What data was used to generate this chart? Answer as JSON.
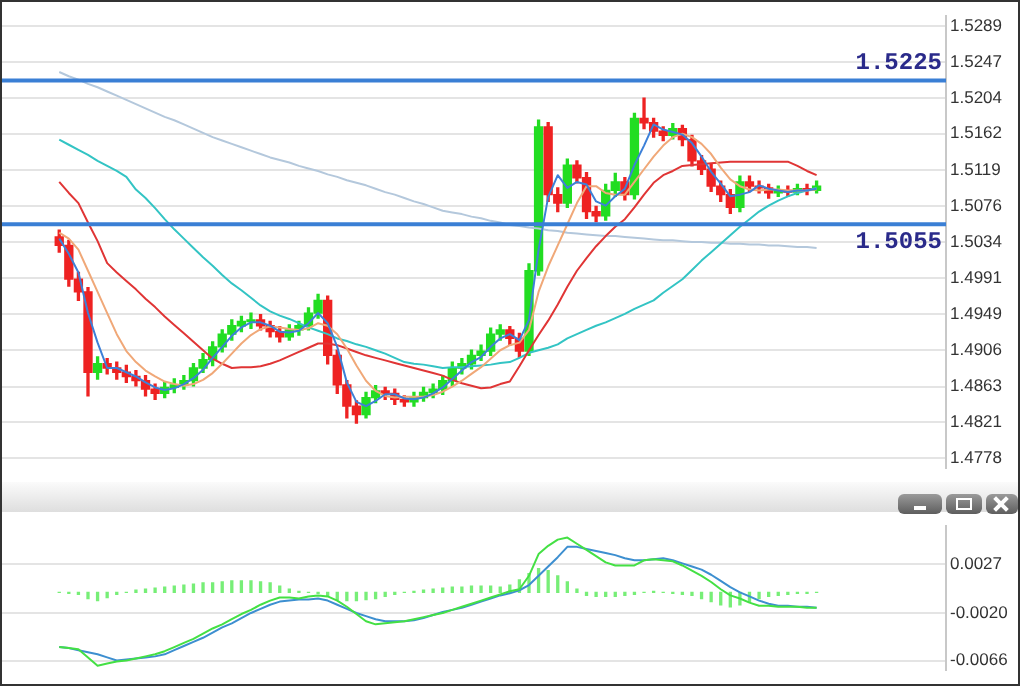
{
  "chart_data": [
    {
      "type": "candlestick",
      "categories": [
        null,
        null,
        null,
        null,
        null,
        null,
        null,
        null,
        null,
        null,
        null,
        null,
        null,
        null,
        null,
        null,
        null,
        null,
        null,
        null,
        null,
        null,
        null,
        null,
        null,
        null,
        null,
        null,
        null,
        null,
        null,
        null,
        null,
        null,
        null,
        null,
        null,
        null,
        null,
        null,
        null,
        null,
        null,
        null,
        null,
        null,
        null,
        null,
        null,
        null,
        null,
        null,
        null,
        null,
        null,
        null,
        null,
        null,
        null,
        null,
        null,
        null,
        null,
        null,
        null,
        null,
        null,
        null,
        null,
        null,
        null,
        null,
        null,
        null,
        null,
        null,
        null,
        null,
        null,
        null
      ],
      "ohlc": [
        [
          1.504,
          1.5048,
          1.5022,
          1.503
        ],
        [
          1.503,
          1.5036,
          1.4982,
          1.499
        ],
        [
          1.499,
          1.4998,
          1.4965,
          1.4975
        ],
        [
          1.4975,
          1.498,
          1.4852,
          1.488
        ],
        [
          1.488,
          1.4898,
          1.4872,
          1.489
        ],
        [
          1.489,
          1.4896,
          1.4878,
          1.4885
        ],
        [
          1.4885,
          1.4892,
          1.4872,
          1.488
        ],
        [
          1.488,
          1.4888,
          1.4868,
          1.4875
        ],
        [
          1.4875,
          1.4882,
          1.4864,
          1.487
        ],
        [
          1.487,
          1.4876,
          1.4852,
          1.486
        ],
        [
          1.486,
          1.4866,
          1.4848,
          1.4855
        ],
        [
          1.4855,
          1.4868,
          1.485,
          1.4862
        ],
        [
          1.4862,
          1.4872,
          1.4856,
          1.4865
        ],
        [
          1.4865,
          1.4876,
          1.486,
          1.487
        ],
        [
          1.487,
          1.489,
          1.4864,
          1.4885
        ],
        [
          1.4885,
          1.4902,
          1.488,
          1.4895
        ],
        [
          1.4895,
          1.4916,
          1.4888,
          1.491
        ],
        [
          1.491,
          1.493,
          1.4904,
          1.4925
        ],
        [
          1.4925,
          1.4942,
          1.4918,
          1.4935
        ],
        [
          1.4935,
          1.4946,
          1.4928,
          1.494
        ],
        [
          1.494,
          1.495,
          1.4932,
          1.4942
        ],
        [
          1.4942,
          1.4948,
          1.493,
          1.4935
        ],
        [
          1.4935,
          1.494,
          1.4922,
          1.4928
        ],
        [
          1.4928,
          1.4934,
          1.4916,
          1.4922
        ],
        [
          1.4922,
          1.4936,
          1.4918,
          1.493
        ],
        [
          1.493,
          1.494,
          1.4924,
          1.4935
        ],
        [
          1.4935,
          1.4956,
          1.493,
          1.495
        ],
        [
          1.495,
          1.4972,
          1.4944,
          1.4965
        ],
        [
          1.4965,
          1.497,
          1.489,
          1.49
        ],
        [
          1.49,
          1.4906,
          1.4855,
          1.4865
        ],
        [
          1.4865,
          1.487,
          1.4826,
          1.484
        ],
        [
          1.484,
          1.4846,
          1.482,
          1.483
        ],
        [
          1.483,
          1.4856,
          1.4826,
          1.485
        ],
        [
          1.485,
          1.4864,
          1.4844,
          1.4858
        ],
        [
          1.4858,
          1.4862,
          1.4848,
          1.4855
        ],
        [
          1.4855,
          1.486,
          1.4842,
          1.4848
        ],
        [
          1.4848,
          1.4852,
          1.484,
          1.4845
        ],
        [
          1.4845,
          1.4856,
          1.484,
          1.485
        ],
        [
          1.485,
          1.4862,
          1.4846,
          1.4856
        ],
        [
          1.4856,
          1.4866,
          1.485,
          1.486
        ],
        [
          1.486,
          1.4876,
          1.4854,
          1.487
        ],
        [
          1.487,
          1.4892,
          1.4864,
          1.4885
        ],
        [
          1.4885,
          1.4896,
          1.4878,
          1.489
        ],
        [
          1.489,
          1.4906,
          1.4884,
          1.49
        ],
        [
          1.49,
          1.4912,
          1.4894,
          1.4905
        ],
        [
          1.4905,
          1.4932,
          1.49,
          1.4925
        ],
        [
          1.4925,
          1.4936,
          1.4918,
          1.493
        ],
        [
          1.493,
          1.4934,
          1.4912,
          1.492
        ],
        [
          1.492,
          1.4926,
          1.4898,
          1.4905
        ],
        [
          1.4905,
          1.5008,
          1.49,
          1.5
        ],
        [
          1.5,
          1.5178,
          1.4995,
          1.517
        ],
        [
          1.517,
          1.5175,
          1.5082,
          1.509
        ],
        [
          1.509,
          1.5098,
          1.507,
          1.508
        ],
        [
          1.508,
          1.5132,
          1.5075,
          1.5125
        ],
        [
          1.5125,
          1.513,
          1.5104,
          1.511
        ],
        [
          1.511,
          1.5116,
          1.5062,
          1.507
        ],
        [
          1.507,
          1.5076,
          1.5058,
          1.5065
        ],
        [
          1.5065,
          1.5102,
          1.506,
          1.5095
        ],
        [
          1.5095,
          1.5115,
          1.5088,
          1.5105
        ],
        [
          1.5105,
          1.511,
          1.5084,
          1.509
        ],
        [
          1.509,
          1.5186,
          1.5085,
          1.518
        ],
        [
          1.518,
          1.5204,
          1.5168,
          1.5175
        ],
        [
          1.5175,
          1.518,
          1.5158,
          1.5165
        ],
        [
          1.5165,
          1.517,
          1.5154,
          1.516
        ],
        [
          1.516,
          1.5174,
          1.5156,
          1.5168
        ],
        [
          1.5168,
          1.5172,
          1.5148,
          1.5155
        ],
        [
          1.5155,
          1.516,
          1.5124,
          1.513
        ],
        [
          1.513,
          1.5136,
          1.5114,
          1.512
        ],
        [
          1.512,
          1.5126,
          1.5094,
          1.51
        ],
        [
          1.51,
          1.5106,
          1.5082,
          1.509
        ],
        [
          1.509,
          1.5096,
          1.5068,
          1.5075
        ],
        [
          1.5075,
          1.5112,
          1.507,
          1.5105
        ],
        [
          1.5105,
          1.5112,
          1.5094,
          1.51
        ],
        [
          1.51,
          1.5106,
          1.5092,
          1.5098
        ],
        [
          1.5098,
          1.5102,
          1.5086,
          1.5092
        ],
        [
          1.5092,
          1.51,
          1.5088,
          1.5095
        ],
        [
          1.5095,
          1.51,
          1.5088,
          1.5093
        ],
        [
          1.5093,
          1.5102,
          1.509,
          1.5097
        ],
        [
          1.5097,
          1.5102,
          1.509,
          1.5095
        ],
        [
          1.5095,
          1.5106,
          1.5092,
          1.51
        ]
      ],
      "series": [
        {
          "type": "line",
          "color": "#b4c8dc",
          "values": [
            1.5235,
            1.523,
            1.5226,
            1.5221,
            1.5217,
            1.5212,
            1.5207,
            1.5202,
            1.5197,
            1.5192,
            1.5187,
            1.5182,
            1.5178,
            1.5173,
            1.5168,
            1.5163,
            1.5158,
            1.5154,
            1.515,
            1.5146,
            1.5142,
            1.5138,
            1.5134,
            1.5131,
            1.5128,
            1.5124,
            1.5121,
            1.5118,
            1.5114,
            1.5111,
            1.5107,
            1.5104,
            1.5101,
            1.5097,
            1.5093,
            1.509,
            1.5086,
            1.5082,
            1.5079,
            1.5075,
            1.5071,
            1.5069,
            1.5067,
            1.5064,
            1.5062,
            1.5059,
            1.5057,
            1.5054,
            1.5053,
            1.5051,
            1.505,
            1.5048,
            1.5047,
            1.5045,
            1.5044,
            1.5043,
            1.5042,
            1.5041,
            1.5041,
            1.504,
            1.5039,
            1.5038,
            1.5037,
            1.5036,
            1.5036,
            1.5035,
            1.5034,
            1.5034,
            1.5033,
            1.5033,
            1.5032,
            1.5032,
            1.5031,
            1.5031,
            1.503,
            1.503,
            1.5029,
            1.5028,
            1.5028,
            1.5027
          ]
        },
        {
          "type": "line",
          "color": "#33c4c4",
          "values": [
            1.5155,
            1.5149,
            1.5143,
            1.5137,
            1.513,
            1.5124,
            1.5118,
            1.5111,
            1.5096,
            1.5086,
            1.5074,
            1.5061,
            1.5049,
            1.5038,
            1.5027,
            1.5016,
            1.5006,
            1.4995,
            1.4985,
            1.4977,
            1.4968,
            1.4959,
            1.4952,
            1.4947,
            1.4943,
            1.4938,
            1.4933,
            1.4929,
            1.4925,
            1.492,
            1.4917,
            1.4913,
            1.491,
            1.4906,
            1.4902,
            1.4897,
            1.4892,
            1.489,
            1.4889,
            1.4887,
            1.4885,
            1.4886,
            1.4886,
            1.4887,
            1.4888,
            1.4889,
            1.4891,
            1.4892,
            1.4897,
            1.4903,
            1.4906,
            1.4909,
            1.4913,
            1.492,
            1.4925,
            1.493,
            1.4935,
            1.4939,
            1.4944,
            1.4949,
            1.4955,
            1.496,
            1.4965,
            1.4974,
            1.4982,
            1.499,
            1.5001,
            1.5012,
            1.5022,
            1.5032,
            1.5042,
            1.5052,
            1.5061,
            1.507,
            1.5077,
            1.5083,
            1.5088,
            1.5092,
            1.5095,
            1.5098
          ]
        },
        {
          "type": "line",
          "color": "#e03535",
          "values": [
            1.5105,
            1.5092,
            1.508,
            1.5057,
            1.5035,
            1.5009,
            1.4998,
            1.4988,
            1.4978,
            1.4967,
            1.4957,
            1.4946,
            1.4936,
            1.4926,
            1.4916,
            1.4906,
            1.4896,
            1.489,
            1.4885,
            1.4886,
            1.4886,
            1.4887,
            1.489,
            1.4894,
            1.4899,
            1.4904,
            1.4909,
            1.4914,
            1.4914,
            1.4912,
            1.4908,
            1.4904,
            1.49,
            1.4897,
            1.4894,
            1.4891,
            1.4888,
            1.4885,
            1.4882,
            1.4879,
            1.4876,
            1.4871,
            1.4867,
            1.4864,
            1.4861,
            1.4862,
            1.4866,
            1.4869,
            1.4887,
            1.4906,
            1.4924,
            1.4941,
            1.496,
            1.4981,
            1.5,
            1.5015,
            1.5029,
            1.5041,
            1.5052,
            1.5061,
            1.5075,
            1.509,
            1.5104,
            1.5113,
            1.5118,
            1.5124,
            1.5125,
            1.5126,
            1.5127,
            1.5128,
            1.5129,
            1.5129,
            1.5129,
            1.5129,
            1.5129,
            1.5129,
            1.5129,
            1.5124,
            1.5118,
            1.5113
          ]
        },
        {
          "type": "line",
          "color": "#f0a878",
          "values": [
            1.5045,
            1.5038,
            1.5025,
            1.5,
            1.4975,
            1.495,
            1.4925,
            1.4905,
            1.4892,
            1.4882,
            1.4875,
            1.4869,
            1.4866,
            1.4864,
            1.4866,
            1.4871,
            1.4879,
            1.489,
            1.4902,
            1.4914,
            1.4924,
            1.4931,
            1.4934,
            1.4933,
            1.4931,
            1.493,
            1.4932,
            1.4938,
            1.4935,
            1.4925,
            1.4908,
            1.4888,
            1.487,
            1.4858,
            1.4852,
            1.485,
            1.4851,
            1.4851,
            1.4851,
            1.4853,
            1.4857,
            1.4863,
            1.487,
            1.4878,
            1.4886,
            1.4896,
            1.4906,
            1.4912,
            1.4915,
            1.493,
            1.4975,
            1.5005,
            1.503,
            1.5055,
            1.508,
            1.51,
            1.51,
            1.5092,
            1.509,
            1.509,
            1.5105,
            1.512,
            1.5135,
            1.5148,
            1.5158,
            1.5162,
            1.5158,
            1.515,
            1.5138,
            1.5122,
            1.5108,
            1.51,
            1.5096,
            1.5095,
            1.5096,
            1.5096,
            1.5095,
            1.5095,
            1.5095,
            1.5096
          ]
        },
        {
          "type": "line",
          "color": "#3d80d8",
          "values": [
            1.5038,
            1.502,
            1.4998,
            1.495,
            1.4915,
            1.4885,
            1.4885,
            1.488,
            1.4875,
            1.4868,
            1.4862,
            1.4859,
            1.4861,
            1.4866,
            1.4873,
            1.4883,
            1.4897,
            1.491,
            1.4923,
            1.4933,
            1.4939,
            1.4939,
            1.4935,
            1.4928,
            1.4927,
            1.4929,
            1.4938,
            1.495,
            1.4938,
            1.491,
            1.4868,
            1.4845,
            1.484,
            1.4846,
            1.4854,
            1.4854,
            1.4849,
            1.4848,
            1.485,
            1.4855,
            1.4862,
            1.4872,
            1.4882,
            1.4892,
            1.4898,
            1.491,
            1.492,
            1.4925,
            1.4918,
            1.4942,
            1.5025,
            1.5087,
            1.5113,
            1.5098,
            1.5105,
            1.5102,
            1.5082,
            1.5077,
            1.5088,
            1.5097,
            1.5125,
            1.5148,
            1.5173,
            1.5167,
            1.5164,
            1.5161,
            1.5151,
            1.5135,
            1.5117,
            1.5103,
            1.5088,
            1.509,
            1.5093,
            1.5101,
            1.5097,
            1.5095,
            1.5093,
            1.5095,
            1.5095,
            1.5097
          ]
        }
      ],
      "ylim": [
        1.4767,
        1.5301
      ],
      "yticks": [
        1.5289,
        1.5247,
        1.5204,
        1.5162,
        1.5119,
        1.5076,
        1.5034,
        1.4991,
        1.4949,
        1.4906,
        1.4863,
        1.4821,
        1.4778
      ],
      "grid": "y",
      "ref_lines": [
        {
          "axis": "y",
          "value": 1.5225,
          "label": "1.5225",
          "color": "#3a7fd5"
        },
        {
          "axis": "y",
          "value": 1.5055,
          "label": "1.5055",
          "color": "#3a7fd5"
        }
      ]
    },
    {
      "type": "line",
      "categories": [
        null,
        null,
        null,
        null,
        null,
        null,
        null,
        null,
        null,
        null,
        null,
        null,
        null,
        null,
        null,
        null,
        null,
        null,
        null,
        null,
        null,
        null,
        null,
        null,
        null,
        null,
        null,
        null,
        null,
        null,
        null,
        null,
        null,
        null,
        null,
        null,
        null,
        null,
        null,
        null,
        null,
        null,
        null,
        null,
        null,
        null,
        null,
        null,
        null,
        null,
        null,
        null,
        null,
        null,
        null,
        null,
        null,
        null,
        null,
        null,
        null,
        null,
        null,
        null,
        null,
        null,
        null,
        null,
        null,
        null,
        null,
        null,
        null,
        null,
        null,
        null,
        null,
        null,
        null,
        null
      ],
      "series": [
        {
          "type": "bar",
          "color": "#77ee77",
          "values": [
            0.0,
            -0.0001,
            -0.0002,
            -0.0006,
            -0.0008,
            -0.0005,
            -0.0002,
            0.0,
            0.0002,
            0.0003,
            0.0004,
            0.0005,
            0.0006,
            0.0007,
            0.0008,
            0.0009,
            0.0009,
            0.001,
            0.0011,
            0.0011,
            0.0011,
            0.001,
            0.0009,
            0.0006,
            0.0003,
            0.0001,
            0.0,
            -0.0001,
            -0.0004,
            -0.0007,
            -0.0008,
            -0.0008,
            -0.0007,
            -0.0006,
            -0.0004,
            -0.0002,
            0.0,
            0.0001,
            0.0002,
            0.0003,
            0.0004,
            0.0005,
            0.0005,
            0.0006,
            0.0006,
            0.0006,
            0.0005,
            0.0007,
            0.0012,
            0.0018,
            0.0023,
            0.0021,
            0.0016,
            0.001,
            0.0003,
            -0.0003,
            -0.0004,
            -0.0004,
            -0.0004,
            -0.0003,
            -0.0002,
            0.0,
            0.0001,
            0.0,
            -0.0001,
            -0.0002,
            -0.0003,
            -0.0006,
            -0.0009,
            -0.0012,
            -0.0014,
            -0.0012,
            -0.0009,
            -0.0006,
            -0.0004,
            -0.0003,
            -0.0002,
            -0.0001,
            -0.0001,
            0.0
          ]
        },
        {
          "type": "line",
          "color": "#3d8fd0",
          "values": [
            -0.0053,
            -0.0054,
            -0.0056,
            -0.0058,
            -0.006,
            -0.0063,
            -0.0066,
            -0.0065,
            -0.0064,
            -0.0063,
            -0.0062,
            -0.006,
            -0.0056,
            -0.0052,
            -0.0048,
            -0.0044,
            -0.0039,
            -0.0034,
            -0.003,
            -0.0025,
            -0.002,
            -0.0016,
            -0.0012,
            -0.0009,
            -0.0008,
            -0.0007,
            -0.0007,
            -0.0006,
            -0.0008,
            -0.0012,
            -0.0016,
            -0.002,
            -0.0023,
            -0.0026,
            -0.0028,
            -0.0028,
            -0.0028,
            -0.0027,
            -0.0025,
            -0.0022,
            -0.0019,
            -0.0017,
            -0.0015,
            -0.0012,
            -0.0009,
            -0.0006,
            -0.0003,
            -0.0001,
            0.0002,
            0.0007,
            0.0016,
            0.0025,
            0.0034,
            0.0044,
            0.0044,
            0.0042,
            0.004,
            0.0038,
            0.0036,
            0.0033,
            0.0031,
            0.0031,
            0.0032,
            0.0033,
            0.0031,
            0.0028,
            0.0025,
            0.0022,
            0.0017,
            0.0011,
            0.0005,
            0.0,
            -0.0004,
            -0.0008,
            -0.0011,
            -0.0013,
            -0.0013,
            -0.0014,
            -0.0014,
            -0.0015
          ]
        },
        {
          "type": "line",
          "color": "#44e044",
          "values": [
            -0.0053,
            -0.0054,
            -0.0055,
            -0.0063,
            -0.0071,
            -0.0069,
            -0.0067,
            -0.0066,
            -0.0064,
            -0.0062,
            -0.006,
            -0.0057,
            -0.0053,
            -0.0049,
            -0.0045,
            -0.004,
            -0.0035,
            -0.0031,
            -0.0026,
            -0.0021,
            -0.0017,
            -0.0012,
            -0.0008,
            -0.0005,
            -0.0005,
            -0.0006,
            -0.0004,
            -0.0003,
            -0.0004,
            -0.0008,
            -0.0014,
            -0.0021,
            -0.0028,
            -0.0031,
            -0.003,
            -0.0029,
            -0.0028,
            -0.0026,
            -0.0024,
            -0.0022,
            -0.002,
            -0.0017,
            -0.0014,
            -0.0011,
            -0.0008,
            -0.0005,
            -0.0002,
            0.0001,
            0.0003,
            0.0016,
            0.0037,
            0.0045,
            0.0051,
            0.0053,
            0.0047,
            0.0041,
            0.0035,
            0.0029,
            0.0026,
            0.0026,
            0.0026,
            0.0031,
            0.0032,
            0.0031,
            0.003,
            0.0026,
            0.0021,
            0.0016,
            0.001,
            0.0003,
            -0.0003,
            -0.0006,
            -0.001,
            -0.0013,
            -0.0013,
            -0.0014,
            -0.0014,
            -0.0014,
            -0.0015,
            -0.0015
          ]
        }
      ],
      "ylim": [
        -0.0075,
        0.0064
      ],
      "yticks": [
        0.0027,
        {
          "value": -0.002,
          "label": "-0.0020"
        },
        -0.0066
      ],
      "grid": "y"
    }
  ]
}
